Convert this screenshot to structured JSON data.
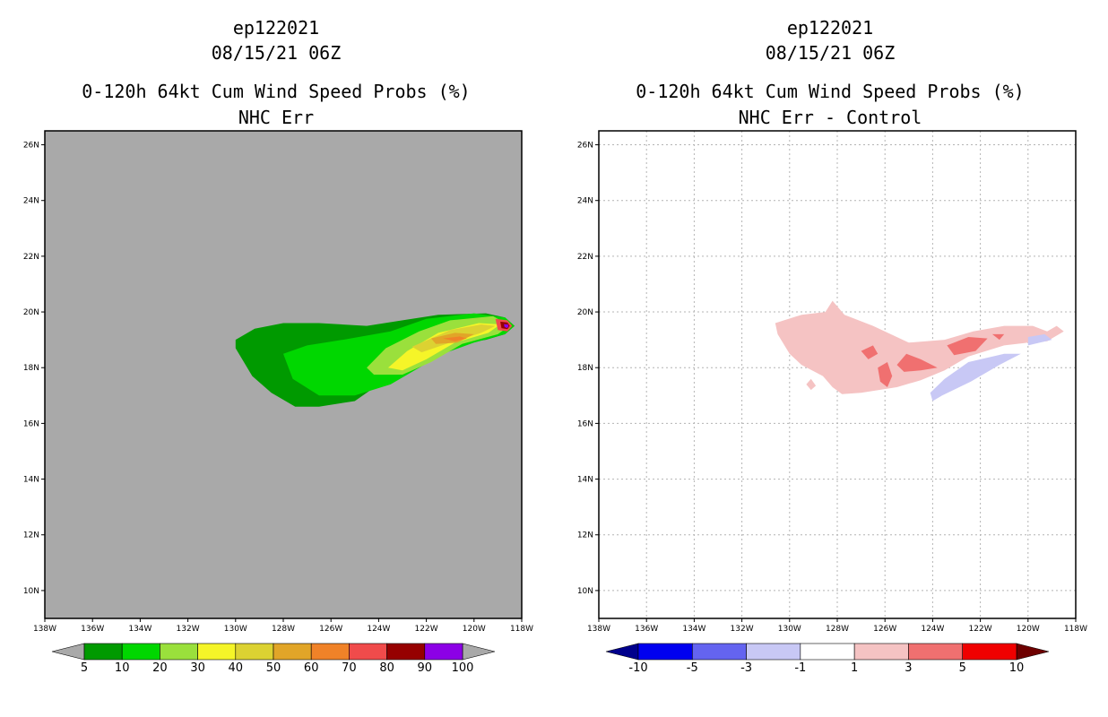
{
  "chart_data": [
    {
      "type": "filled-contour map",
      "storm_id": "ep122021",
      "datetime": "08/15/21 06Z",
      "title": "0-120h 64kt Cum Wind Speed Probs (%)",
      "subtitle": "NHC Err",
      "xlabels": [
        "138W",
        "136W",
        "134W",
        "132W",
        "130W",
        "128W",
        "126W",
        "124W",
        "122W",
        "120W",
        "118W"
      ],
      "ylabels": [
        "10N",
        "12N",
        "14N",
        "16N",
        "18N",
        "20N",
        "22N",
        "24N",
        "26N"
      ],
      "lon_range": [
        -138,
        -118
      ],
      "lat_range": [
        9,
        26.5
      ],
      "grid": false,
      "background": "#a9a9a9",
      "colorbar": {
        "levels": [
          "5",
          "10",
          "20",
          "30",
          "40",
          "50",
          "60",
          "70",
          "80",
          "90",
          "100"
        ],
        "colors": [
          "#009a00",
          "#00d700",
          "#9ae03c",
          "#f5f528",
          "#dcd232",
          "#e1a528",
          "#f08228",
          "#f04b4b",
          "#960000",
          "#8c00e6"
        ],
        "low_color": "#a9a9a9",
        "high_color": "#a9a9a9"
      },
      "contours": [
        {
          "level": "5-10",
          "color": "#009a00",
          "points": [
            [
              -130,
              19
            ],
            [
              -129.2,
              19.4
            ],
            [
              -128,
              19.6
            ],
            [
              -126.5,
              19.6
            ],
            [
              -124.5,
              19.5
            ],
            [
              -123,
              19.7
            ],
            [
              -121.5,
              19.9
            ],
            [
              -119.5,
              19.95
            ],
            [
              -118.7,
              19.8
            ],
            [
              -118.3,
              19.5
            ],
            [
              -118.7,
              19.2
            ],
            [
              -119.5,
              19
            ],
            [
              -121,
              18.8
            ],
            [
              -122,
              18.5
            ],
            [
              -123,
              18.1
            ],
            [
              -124,
              17.4
            ],
            [
              -125,
              16.8
            ],
            [
              -126.5,
              16.6
            ],
            [
              -127.5,
              16.6
            ],
            [
              -128.5,
              17.1
            ],
            [
              -129.3,
              17.7
            ],
            [
              -130,
              18.7
            ]
          ]
        },
        {
          "level": "10-20",
          "color": "#00d700",
          "points": [
            [
              -128,
              18.5
            ],
            [
              -127,
              18.8
            ],
            [
              -125.5,
              19
            ],
            [
              -123.5,
              19.3
            ],
            [
              -122,
              19.75
            ],
            [
              -120,
              19.95
            ],
            [
              -118.7,
              19.8
            ],
            [
              -118.3,
              19.5
            ],
            [
              -118.7,
              19.2
            ],
            [
              -120,
              18.9
            ],
            [
              -121.3,
              18.5
            ],
            [
              -122.3,
              18
            ],
            [
              -123.5,
              17.4
            ],
            [
              -125,
              17
            ],
            [
              -126.5,
              17
            ],
            [
              -127.6,
              17.6
            ]
          ]
        },
        {
          "level": "20-30",
          "color": "#9ae03c",
          "points": [
            [
              -124.5,
              18
            ],
            [
              -123.7,
              18.7
            ],
            [
              -122.3,
              19.3
            ],
            [
              -121,
              19.7
            ],
            [
              -119.2,
              19.85
            ],
            [
              -118.5,
              19.5
            ],
            [
              -119,
              19.2
            ],
            [
              -120.5,
              18.85
            ],
            [
              -121.8,
              18.2
            ],
            [
              -123,
              17.75
            ],
            [
              -124.2,
              17.75
            ]
          ]
        },
        {
          "level": "30-40",
          "color": "#f5f528",
          "points": [
            [
              -123.6,
              18
            ],
            [
              -122.8,
              18.6
            ],
            [
              -121.5,
              19.25
            ],
            [
              -119.8,
              19.6
            ],
            [
              -118.9,
              19.55
            ],
            [
              -119.4,
              19.25
            ],
            [
              -120.8,
              18.9
            ],
            [
              -122,
              18.3
            ],
            [
              -123,
              17.9
            ]
          ]
        },
        {
          "level": "40-50",
          "color": "#dcd232",
          "points": [
            [
              -122.6,
              18.75
            ],
            [
              -121,
              19.35
            ],
            [
              -119.7,
              19.55
            ],
            [
              -119.1,
              19.5
            ],
            [
              -119.7,
              19.25
            ],
            [
              -121,
              18.9
            ],
            [
              -122.2,
              18.55
            ]
          ]
        },
        {
          "level": "50-60",
          "color": "#e1a528",
          "points": [
            [
              -121.8,
              19.05
            ],
            [
              -120.8,
              19.25
            ],
            [
              -120,
              19.2
            ],
            [
              -120.7,
              18.9
            ],
            [
              -121.6,
              18.85
            ]
          ]
        },
        {
          "level": "60-70",
          "color": "#f08228",
          "points": [
            [
              -121.3,
              19.05
            ],
            [
              -120.6,
              19.12
            ],
            [
              -120.3,
              19.05
            ],
            [
              -120.8,
              18.95
            ]
          ]
        },
        {
          "level": "70-80",
          "color": "#f04b4b",
          "points": [
            [
              -119.1,
              19.75
            ],
            [
              -118.6,
              19.7
            ],
            [
              -118.4,
              19.5
            ],
            [
              -118.6,
              19.3
            ],
            [
              -119,
              19.35
            ]
          ]
        },
        {
          "level": "80-90",
          "color": "#960000",
          "points": [
            [
              -118.9,
              19.65
            ],
            [
              -118.6,
              19.62
            ],
            [
              -118.5,
              19.5
            ],
            [
              -118.6,
              19.38
            ],
            [
              -118.85,
              19.42
            ]
          ]
        },
        {
          "level": "90-100",
          "color": "#8c00e6",
          "points": [
            [
              -118.75,
              19.56
            ],
            [
              -118.58,
              19.55
            ],
            [
              -118.55,
              19.48
            ],
            [
              -118.62,
              19.42
            ],
            [
              -118.72,
              19.46
            ]
          ]
        }
      ]
    },
    {
      "type": "filled-contour map",
      "storm_id": "ep122021",
      "datetime": "08/15/21 06Z",
      "title": "0-120h 64kt Cum Wind Speed Probs (%)",
      "subtitle": "NHC Err - Control",
      "xlabels": [
        "138W",
        "136W",
        "134W",
        "132W",
        "130W",
        "128W",
        "126W",
        "124W",
        "122W",
        "120W",
        "118W"
      ],
      "ylabels": [
        "10N",
        "12N",
        "14N",
        "16N",
        "18N",
        "20N",
        "22N",
        "24N",
        "26N"
      ],
      "lon_range": [
        -138,
        -118
      ],
      "lat_range": [
        9,
        26.5
      ],
      "grid": true,
      "background": "#ffffff",
      "colorbar": {
        "levels": [
          "-10",
          "-5",
          "-3",
          "-1",
          "1",
          "3",
          "5",
          "10"
        ],
        "colors": [
          "#0000f0",
          "#6464f0",
          "#c8c8f5",
          "#ffffff",
          "#f5c3c3",
          "#f07070",
          "#f00000"
        ],
        "low_color": "#00008c",
        "high_color": "#6e0000"
      },
      "contours": [
        {
          "level": "1-3",
          "color": "#f5c3c3",
          "points": [
            [
              -130.6,
              19.6
            ],
            [
              -129.5,
              19.9
            ],
            [
              -128.5,
              20
            ],
            [
              -128.2,
              20.4
            ],
            [
              -127.7,
              19.9
            ],
            [
              -126.5,
              19.5
            ],
            [
              -125,
              18.9
            ],
            [
              -123.5,
              19
            ],
            [
              -122.3,
              19.3
            ],
            [
              -121,
              19.5
            ],
            [
              -119.8,
              19.5
            ],
            [
              -119.2,
              19.3
            ],
            [
              -118.8,
              19.5
            ],
            [
              -118.5,
              19.3
            ],
            [
              -119.2,
              18.95
            ],
            [
              -120,
              18.9
            ],
            [
              -121,
              18.8
            ],
            [
              -122.5,
              18.4
            ],
            [
              -123.5,
              17.9
            ],
            [
              -124.5,
              17.55
            ],
            [
              -125.5,
              17.3
            ],
            [
              -127,
              17.1
            ],
            [
              -127.8,
              17.05
            ],
            [
              -128.2,
              17.3
            ],
            [
              -128.6,
              17.7
            ],
            [
              -129.5,
              18.1
            ],
            [
              -130,
              18.5
            ],
            [
              -130.5,
              19.2
            ]
          ]
        },
        {
          "level": "1-3",
          "color": "#f5c3c3",
          "points": [
            [
              -129.3,
              17.4
            ],
            [
              -129.1,
              17.6
            ],
            [
              -128.9,
              17.35
            ],
            [
              -129.1,
              17.2
            ]
          ]
        },
        {
          "level": "3-5",
          "color": "#f07070",
          "points": [
            [
              -127,
              18.6
            ],
            [
              -126.5,
              18.8
            ],
            [
              -126.3,
              18.5
            ],
            [
              -126.7,
              18.3
            ]
          ]
        },
        {
          "level": "3-5",
          "color": "#f07070",
          "points": [
            [
              -125.5,
              18.1
            ],
            [
              -125.1,
              18.5
            ],
            [
              -124.5,
              18.3
            ],
            [
              -123.8,
              18
            ],
            [
              -124.5,
              17.9
            ],
            [
              -125.2,
              17.85
            ]
          ]
        },
        {
          "level": "3-5",
          "color": "#f07070",
          "points": [
            [
              -126.3,
              18
            ],
            [
              -125.9,
              18.2
            ],
            [
              -125.7,
              17.7
            ],
            [
              -125.9,
              17.3
            ],
            [
              -126.2,
              17.5
            ]
          ]
        },
        {
          "level": "3-5",
          "color": "#f07070",
          "points": [
            [
              -123.4,
              18.8
            ],
            [
              -122.5,
              19.1
            ],
            [
              -121.7,
              19.05
            ],
            [
              -122.2,
              18.6
            ],
            [
              -123.1,
              18.45
            ]
          ]
        },
        {
          "level": "3-5",
          "color": "#f07070",
          "points": [
            [
              -121.5,
              19.2
            ],
            [
              -121,
              19.2
            ],
            [
              -121.2,
              19
            ]
          ]
        },
        {
          "level": "-3--1",
          "color": "#c8c8f5",
          "points": [
            [
              -124.1,
              17.1
            ],
            [
              -123.5,
              17.6
            ],
            [
              -122.5,
              18.2
            ],
            [
              -121,
              18.5
            ],
            [
              -120.3,
              18.5
            ],
            [
              -121.2,
              18.1
            ],
            [
              -122.4,
              17.5
            ],
            [
              -123.6,
              17
            ],
            [
              -124,
              16.8
            ]
          ]
        },
        {
          "level": "-3--1",
          "color": "#c8c8f5",
          "points": [
            [
              -120,
              19.1
            ],
            [
              -119.3,
              19.2
            ],
            [
              -119,
              19
            ],
            [
              -119.5,
              18.9
            ],
            [
              -120,
              18.8
            ]
          ]
        }
      ]
    }
  ]
}
